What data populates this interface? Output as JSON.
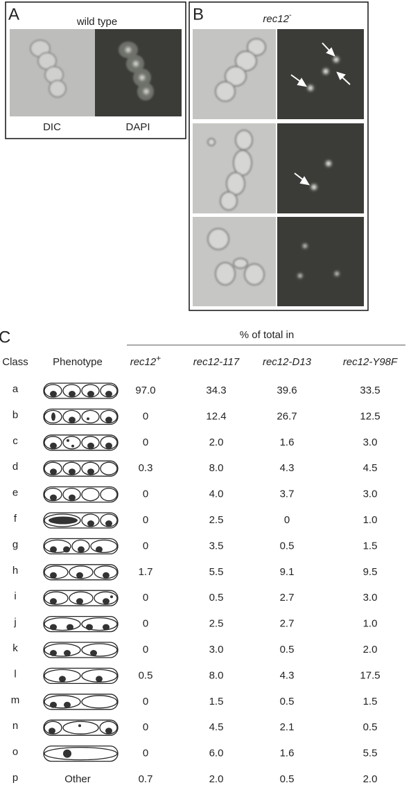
{
  "panel_a": {
    "label": "A",
    "title": "wild type",
    "captions": [
      "DIC",
      "DAPI"
    ]
  },
  "panel_b": {
    "label": "B",
    "title": "rec12",
    "title_sup": "-"
  },
  "panel_c": {
    "label": "C",
    "header": "% of total in",
    "columns": [
      "Class",
      "Phenotype"
    ],
    "strains": [
      {
        "text": "rec12",
        "sup": "+"
      },
      {
        "text": "rec12-117"
      },
      {
        "text": "rec12-D13"
      },
      {
        "text": "rec12-Y98F"
      }
    ],
    "rows": [
      {
        "class": "a",
        "values": [
          "97.0",
          "34.3",
          "39.6",
          "33.5"
        ]
      },
      {
        "class": "b",
        "values": [
          "0",
          "12.4",
          "26.7",
          "12.5"
        ]
      },
      {
        "class": "c",
        "values": [
          "0",
          "2.0",
          "1.6",
          "3.0"
        ]
      },
      {
        "class": "d",
        "values": [
          "0.3",
          "8.0",
          "4.3",
          "4.5"
        ]
      },
      {
        "class": "e",
        "values": [
          "0",
          "4.0",
          "3.7",
          "3.0"
        ]
      },
      {
        "class": "f",
        "values": [
          "0",
          "2.5",
          "0",
          "1.0"
        ]
      },
      {
        "class": "g",
        "values": [
          "0",
          "3.5",
          "0.5",
          "1.5"
        ]
      },
      {
        "class": "h",
        "values": [
          "1.7",
          "5.5",
          "9.1",
          "9.5"
        ]
      },
      {
        "class": "i",
        "values": [
          "0",
          "0.5",
          "2.7",
          "3.0"
        ]
      },
      {
        "class": "j",
        "values": [
          "0",
          "2.5",
          "2.7",
          "1.0"
        ]
      },
      {
        "class": "k",
        "values": [
          "0",
          "3.0",
          "0.5",
          "2.0"
        ]
      },
      {
        "class": "l",
        "values": [
          "0.5",
          "8.0",
          "4.3",
          "17.5"
        ]
      },
      {
        "class": "m",
        "values": [
          "0",
          "1.5",
          "0.5",
          "1.5"
        ]
      },
      {
        "class": "n",
        "values": [
          "0",
          "4.5",
          "2.1",
          "0.5"
        ]
      },
      {
        "class": "o",
        "values": [
          "0",
          "6.0",
          "1.6",
          "5.5"
        ]
      },
      {
        "class": "p",
        "phenotype": "Other",
        "values": [
          "0.7",
          "2.0",
          "0.5",
          "2.0"
        ]
      }
    ]
  }
}
